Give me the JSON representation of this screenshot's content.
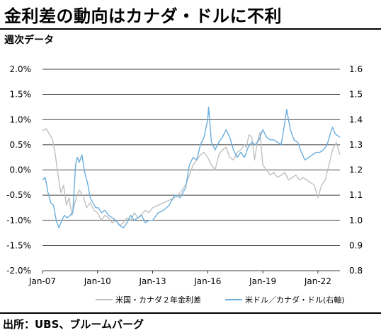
{
  "header": {
    "title": "金利差の動向はカナダ・ドルに不利",
    "subtitle": "週次データ"
  },
  "footer": {
    "source": "出所：UBS、ブルームバーグ"
  },
  "colors": {
    "spread": "#c0c0c0",
    "fx": "#6aaedc",
    "grid": "#000000",
    "text": "#000000"
  },
  "chart_data": {
    "type": "line",
    "x_ticks": [
      "Jan-07",
      "Jan-10",
      "Jan-13",
      "Jan-16",
      "Jan-19",
      "Jan-22"
    ],
    "x_range": [
      2007.0,
      2023.2
    ],
    "y_left": {
      "ticks": [
        "2.0%",
        "1.5%",
        "1.0%",
        "0.5%",
        "0.0%",
        "-0.5%",
        "-1.0%",
        "-1.5%",
        "-2.0%"
      ],
      "range": [
        -2.0,
        2.0
      ]
    },
    "y_right": {
      "ticks": [
        "1.6",
        "1.5",
        "1.4",
        "1.3",
        "1.2",
        "1.1",
        "1.0",
        "0.9",
        "0.8"
      ],
      "range": [
        0.8,
        1.6
      ]
    },
    "grid": true,
    "legend_position": "bottom",
    "series": [
      {
        "name": "米国・カナダ２年金利差",
        "axis": "left",
        "x": [
          2007.0,
          2007.2,
          2007.4,
          2007.55,
          2007.7,
          2007.85,
          2008.0,
          2008.15,
          2008.3,
          2008.45,
          2008.6,
          2008.8,
          2009.0,
          2009.2,
          2009.4,
          2009.6,
          2009.8,
          2010.0,
          2010.2,
          2010.4,
          2010.6,
          2010.8,
          2011.0,
          2011.2,
          2011.4,
          2011.6,
          2011.8,
          2012.0,
          2012.2,
          2012.4,
          2012.6,
          2012.8,
          2013.0,
          2013.3,
          2013.6,
          2013.9,
          2014.2,
          2014.5,
          2014.8,
          2015.0,
          2015.2,
          2015.4,
          2015.6,
          2015.8,
          2016.0,
          2016.2,
          2016.4,
          2016.6,
          2016.8,
          2017.0,
          2017.2,
          2017.4,
          2017.6,
          2017.8,
          2018.0,
          2018.1,
          2018.25,
          2018.4,
          2018.55,
          2018.7,
          2018.85,
          2019.0,
          2019.2,
          2019.4,
          2019.6,
          2019.8,
          2020.0,
          2020.2,
          2020.4,
          2020.6,
          2020.8,
          2021.0,
          2021.2,
          2021.4,
          2021.6,
          2021.8,
          2022.0,
          2022.2,
          2022.4,
          2022.6,
          2022.8,
          2023.0,
          2023.2
        ],
        "values": [
          0.78,
          0.82,
          0.7,
          0.6,
          0.3,
          -0.1,
          -0.45,
          -0.3,
          -0.7,
          -0.55,
          -0.9,
          -0.6,
          -0.4,
          -0.5,
          -0.75,
          -0.65,
          -0.8,
          -0.85,
          -1.0,
          -0.9,
          -0.95,
          -1.05,
          -1.0,
          -1.1,
          -1.05,
          -0.95,
          -1.0,
          -0.85,
          -0.95,
          -0.88,
          -0.8,
          -0.85,
          -0.75,
          -0.7,
          -0.65,
          -0.6,
          -0.55,
          -0.45,
          -0.3,
          -0.1,
          0.1,
          0.2,
          0.3,
          0.35,
          0.25,
          0.1,
          0.0,
          0.3,
          0.4,
          0.45,
          0.25,
          0.2,
          0.35,
          0.4,
          0.5,
          0.45,
          0.7,
          0.65,
          0.2,
          0.55,
          0.75,
          0.1,
          0.0,
          -0.1,
          -0.05,
          -0.15,
          -0.1,
          -0.05,
          -0.2,
          -0.15,
          -0.1,
          -0.2,
          -0.15,
          -0.2,
          -0.25,
          -0.3,
          -0.55,
          -0.3,
          -0.2,
          0.1,
          0.4,
          0.55,
          0.3
        ]
      },
      {
        "name": "米ドル／カナダ・ドル(右軸)",
        "axis": "right",
        "x": [
          2007.0,
          2007.15,
          2007.3,
          2007.45,
          2007.6,
          2007.75,
          2007.9,
          2008.05,
          2008.2,
          2008.35,
          2008.5,
          2008.65,
          2008.8,
          2008.9,
          2009.0,
          2009.15,
          2009.3,
          2009.45,
          2009.6,
          2009.75,
          2009.9,
          2010.05,
          2010.2,
          2010.4,
          2010.6,
          2010.8,
          2011.0,
          2011.2,
          2011.4,
          2011.6,
          2011.8,
          2012.0,
          2012.2,
          2012.4,
          2012.6,
          2012.8,
          2013.0,
          2013.3,
          2013.6,
          2013.9,
          2014.2,
          2014.5,
          2014.8,
          2015.0,
          2015.2,
          2015.4,
          2015.6,
          2015.8,
          2016.0,
          2016.05,
          2016.2,
          2016.4,
          2016.6,
          2016.8,
          2017.0,
          2017.2,
          2017.4,
          2017.6,
          2017.8,
          2018.0,
          2018.2,
          2018.4,
          2018.6,
          2018.8,
          2019.0,
          2019.2,
          2019.4,
          2019.6,
          2019.8,
          2020.0,
          2020.2,
          2020.3,
          2020.5,
          2020.7,
          2020.9,
          2021.1,
          2021.3,
          2021.5,
          2021.7,
          2021.9,
          2022.1,
          2022.3,
          2022.5,
          2022.7,
          2022.8,
          2022.9,
          2023.0,
          2023.2
        ],
        "values": [
          1.16,
          1.17,
          1.11,
          1.07,
          1.06,
          1.0,
          0.97,
          1.0,
          1.02,
          1.01,
          1.02,
          1.03,
          1.22,
          1.25,
          1.23,
          1.26,
          1.19,
          1.15,
          1.09,
          1.07,
          1.05,
          1.05,
          1.03,
          1.04,
          1.02,
          1.01,
          1.0,
          0.98,
          0.97,
          0.99,
          1.02,
          1.0,
          1.01,
          1.02,
          0.99,
          1.0,
          1.0,
          1.03,
          1.04,
          1.06,
          1.1,
          1.09,
          1.13,
          1.22,
          1.25,
          1.24,
          1.3,
          1.33,
          1.4,
          1.45,
          1.31,
          1.28,
          1.31,
          1.33,
          1.36,
          1.33,
          1.28,
          1.25,
          1.27,
          1.25,
          1.29,
          1.31,
          1.3,
          1.32,
          1.36,
          1.33,
          1.32,
          1.32,
          1.31,
          1.3,
          1.39,
          1.44,
          1.36,
          1.32,
          1.31,
          1.27,
          1.24,
          1.25,
          1.26,
          1.27,
          1.27,
          1.28,
          1.3,
          1.35,
          1.37,
          1.35,
          1.34,
          1.33
        ]
      }
    ]
  }
}
